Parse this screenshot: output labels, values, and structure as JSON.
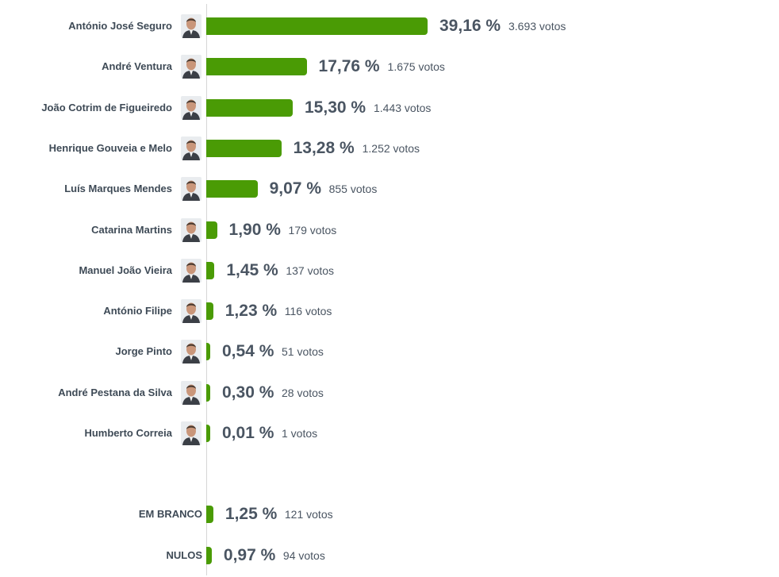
{
  "chart_data": {
    "type": "bar",
    "orientation": "horizontal",
    "xlim": [
      0,
      100
    ],
    "colors": {
      "bar": "#4a9b05",
      "text": "#4a5562",
      "name": "#3e4a56"
    },
    "candidates": [
      {
        "name": "António José Seguro",
        "percent": 39.16,
        "percent_label": "39,16 %",
        "votes_label": "3.693 votos",
        "avatar": "person-photo-icon"
      },
      {
        "name": "André Ventura",
        "percent": 17.76,
        "percent_label": "17,76 %",
        "votes_label": "1.675 votos",
        "avatar": "person-photo-icon"
      },
      {
        "name": "João Cotrim de Figueiredo",
        "percent": 15.3,
        "percent_label": "15,30 %",
        "votes_label": "1.443 votos",
        "avatar": "person-photo-icon"
      },
      {
        "name": "Henrique Gouveia e Melo",
        "percent": 13.28,
        "percent_label": "13,28 %",
        "votes_label": "1.252 votos",
        "avatar": "person-photo-icon"
      },
      {
        "name": "Luís Marques Mendes",
        "percent": 9.07,
        "percent_label": "9,07 %",
        "votes_label": "855 votos",
        "avatar": "person-photo-icon"
      },
      {
        "name": "Catarina Martins",
        "percent": 1.9,
        "percent_label": "1,90 %",
        "votes_label": "179 votos",
        "avatar": "person-photo-icon"
      },
      {
        "name": "Manuel João Vieira",
        "percent": 1.45,
        "percent_label": "1,45 %",
        "votes_label": "137 votos",
        "avatar": "person-photo-icon"
      },
      {
        "name": "António Filipe",
        "percent": 1.23,
        "percent_label": "1,23 %",
        "votes_label": "116 votos",
        "avatar": "person-photo-icon"
      },
      {
        "name": "Jorge Pinto",
        "percent": 0.54,
        "percent_label": "0,54 %",
        "votes_label": "51 votos",
        "avatar": "person-photo-icon"
      },
      {
        "name": "André Pestana da Silva",
        "percent": 0.3,
        "percent_label": "0,30 %",
        "votes_label": "28 votos",
        "avatar": "person-photo-icon"
      },
      {
        "name": "Humberto Correia",
        "percent": 0.01,
        "percent_label": "0,01 %",
        "votes_label": "1 votos",
        "avatar": "person-photo-icon"
      }
    ],
    "other": [
      {
        "name": "EM BRANCO",
        "percent": 1.25,
        "percent_label": "1,25 %",
        "votes_label": "121 votos"
      },
      {
        "name": "NULOS",
        "percent": 0.97,
        "percent_label": "0,97 %",
        "votes_label": "94 votos"
      }
    ]
  }
}
